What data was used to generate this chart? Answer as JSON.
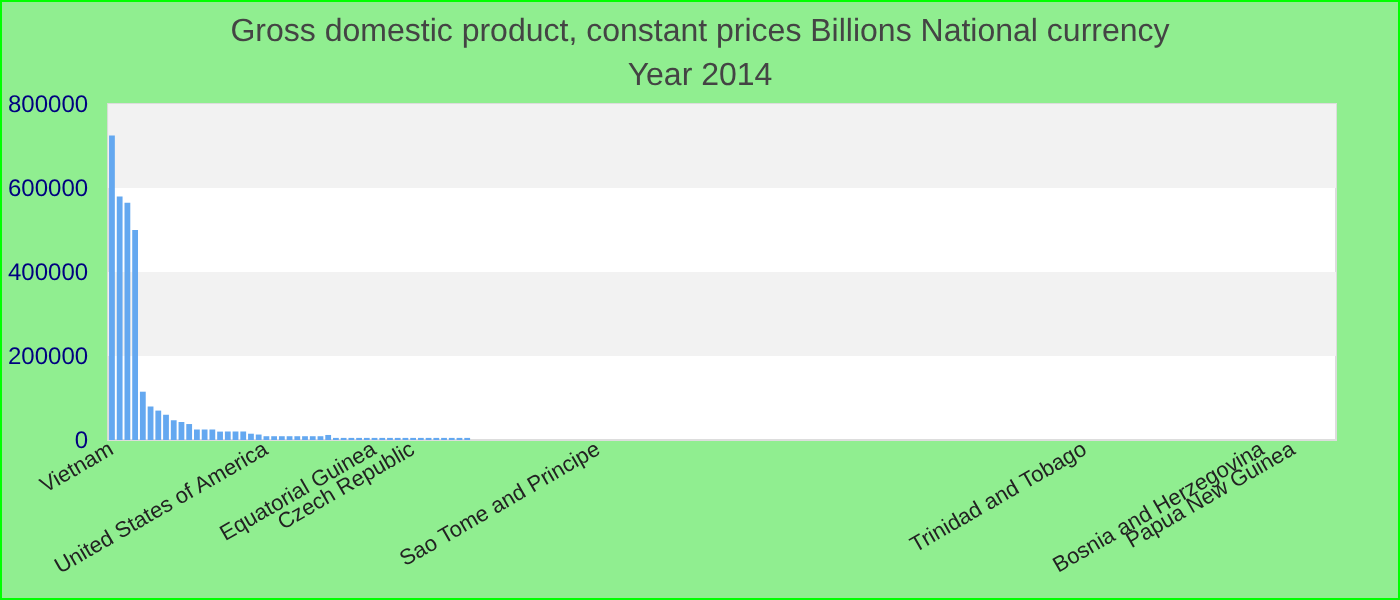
{
  "chart_data": {
    "type": "bar",
    "title": "Gross domestic product, constant prices Billions National currency",
    "subtitle": "Year 2014",
    "categories": [
      "Vietnam",
      null,
      null,
      null,
      null,
      null,
      null,
      null,
      null,
      null,
      null,
      null,
      null,
      null,
      null,
      null,
      null,
      null,
      null,
      null,
      "United States of America",
      null,
      null,
      null,
      null,
      null,
      null,
      null,
      null,
      null,
      null,
      null,
      null,
      null,
      "Equatorial Guinea",
      null,
      null,
      null,
      null,
      "Czech Republic",
      null,
      null,
      null,
      null,
      null,
      null,
      null,
      null,
      null,
      null,
      null,
      null,
      null,
      null,
      null,
      null,
      null,
      null,
      null,
      null,
      null,
      null,
      null,
      "Sao Tome and Principe",
      null,
      null,
      null,
      null,
      null,
      null,
      null,
      null,
      null,
      null,
      null,
      null,
      null,
      null,
      null,
      null,
      null,
      null,
      null,
      null,
      null,
      null,
      null,
      null,
      null,
      null,
      null,
      null,
      null,
      null,
      null,
      null,
      null,
      null,
      null,
      null,
      null,
      null,
      null,
      null,
      null,
      null,
      null,
      null,
      null,
      null,
      null,
      null,
      null,
      null,
      null,
      null,
      null,
      null,
      null,
      null,
      null,
      null,
      null,
      null,
      null,
      null,
      "Trinidad and Tobago",
      null,
      null,
      null,
      null,
      null,
      null,
      null,
      null,
      null,
      null,
      null,
      null,
      null,
      null,
      null,
      null,
      null,
      null,
      null,
      null,
      null,
      null,
      "Bosnia and Herzegovina",
      null,
      null,
      null,
      "Papua New Guinea",
      null,
      null,
      null,
      null,
      null
    ],
    "values": [
      725000,
      580000,
      565000,
      500000,
      115000,
      80000,
      70000,
      60000,
      47000,
      43000,
      38000,
      25000,
      25000,
      25000,
      20000,
      20000,
      20000,
      20000,
      15000,
      13000,
      9000,
      9000,
      9000,
      9000,
      9000,
      9000,
      9000,
      9000,
      12000,
      5000,
      5000,
      5000,
      5000,
      5000,
      5000,
      5000,
      5000,
      5000,
      5000,
      5000,
      5000,
      5000,
      5000,
      5000,
      5000,
      5000,
      5000,
      0,
      0,
      0,
      0,
      0,
      0,
      0,
      0,
      0,
      0,
      0,
      0,
      0,
      0,
      0,
      0,
      0,
      0,
      0,
      0,
      0,
      0,
      0,
      0,
      0,
      0,
      0,
      0,
      0,
      0,
      0,
      0,
      0,
      0,
      0,
      0,
      0,
      0,
      0,
      0,
      0,
      0,
      0,
      0,
      0,
      0,
      0,
      0,
      0,
      0,
      0,
      0,
      0,
      0,
      0,
      0,
      0,
      0,
      0,
      0,
      0,
      0,
      0,
      0,
      0,
      0,
      0,
      0,
      0,
      0,
      0,
      0,
      0,
      0,
      0,
      0,
      0,
      0,
      0,
      0,
      0,
      0,
      0,
      0,
      0,
      0,
      0,
      0,
      0,
      0,
      0,
      0,
      0,
      0,
      0,
      0,
      0,
      0,
      0,
      0,
      0,
      0,
      0,
      0,
      0,
      0,
      0,
      0,
      0,
      0,
      0,
      0
    ],
    "color": "#64a8f0",
    "ylim": [
      0,
      800000
    ],
    "yticks": [
      0,
      200000,
      400000,
      600000,
      800000
    ],
    "bands": [
      {
        "axis": "y",
        "from": 200000,
        "to": 400000,
        "color": "#f2f2f2"
      },
      {
        "axis": "y",
        "from": 600000,
        "to": 800000,
        "color": "#f2f2f2"
      }
    ]
  }
}
